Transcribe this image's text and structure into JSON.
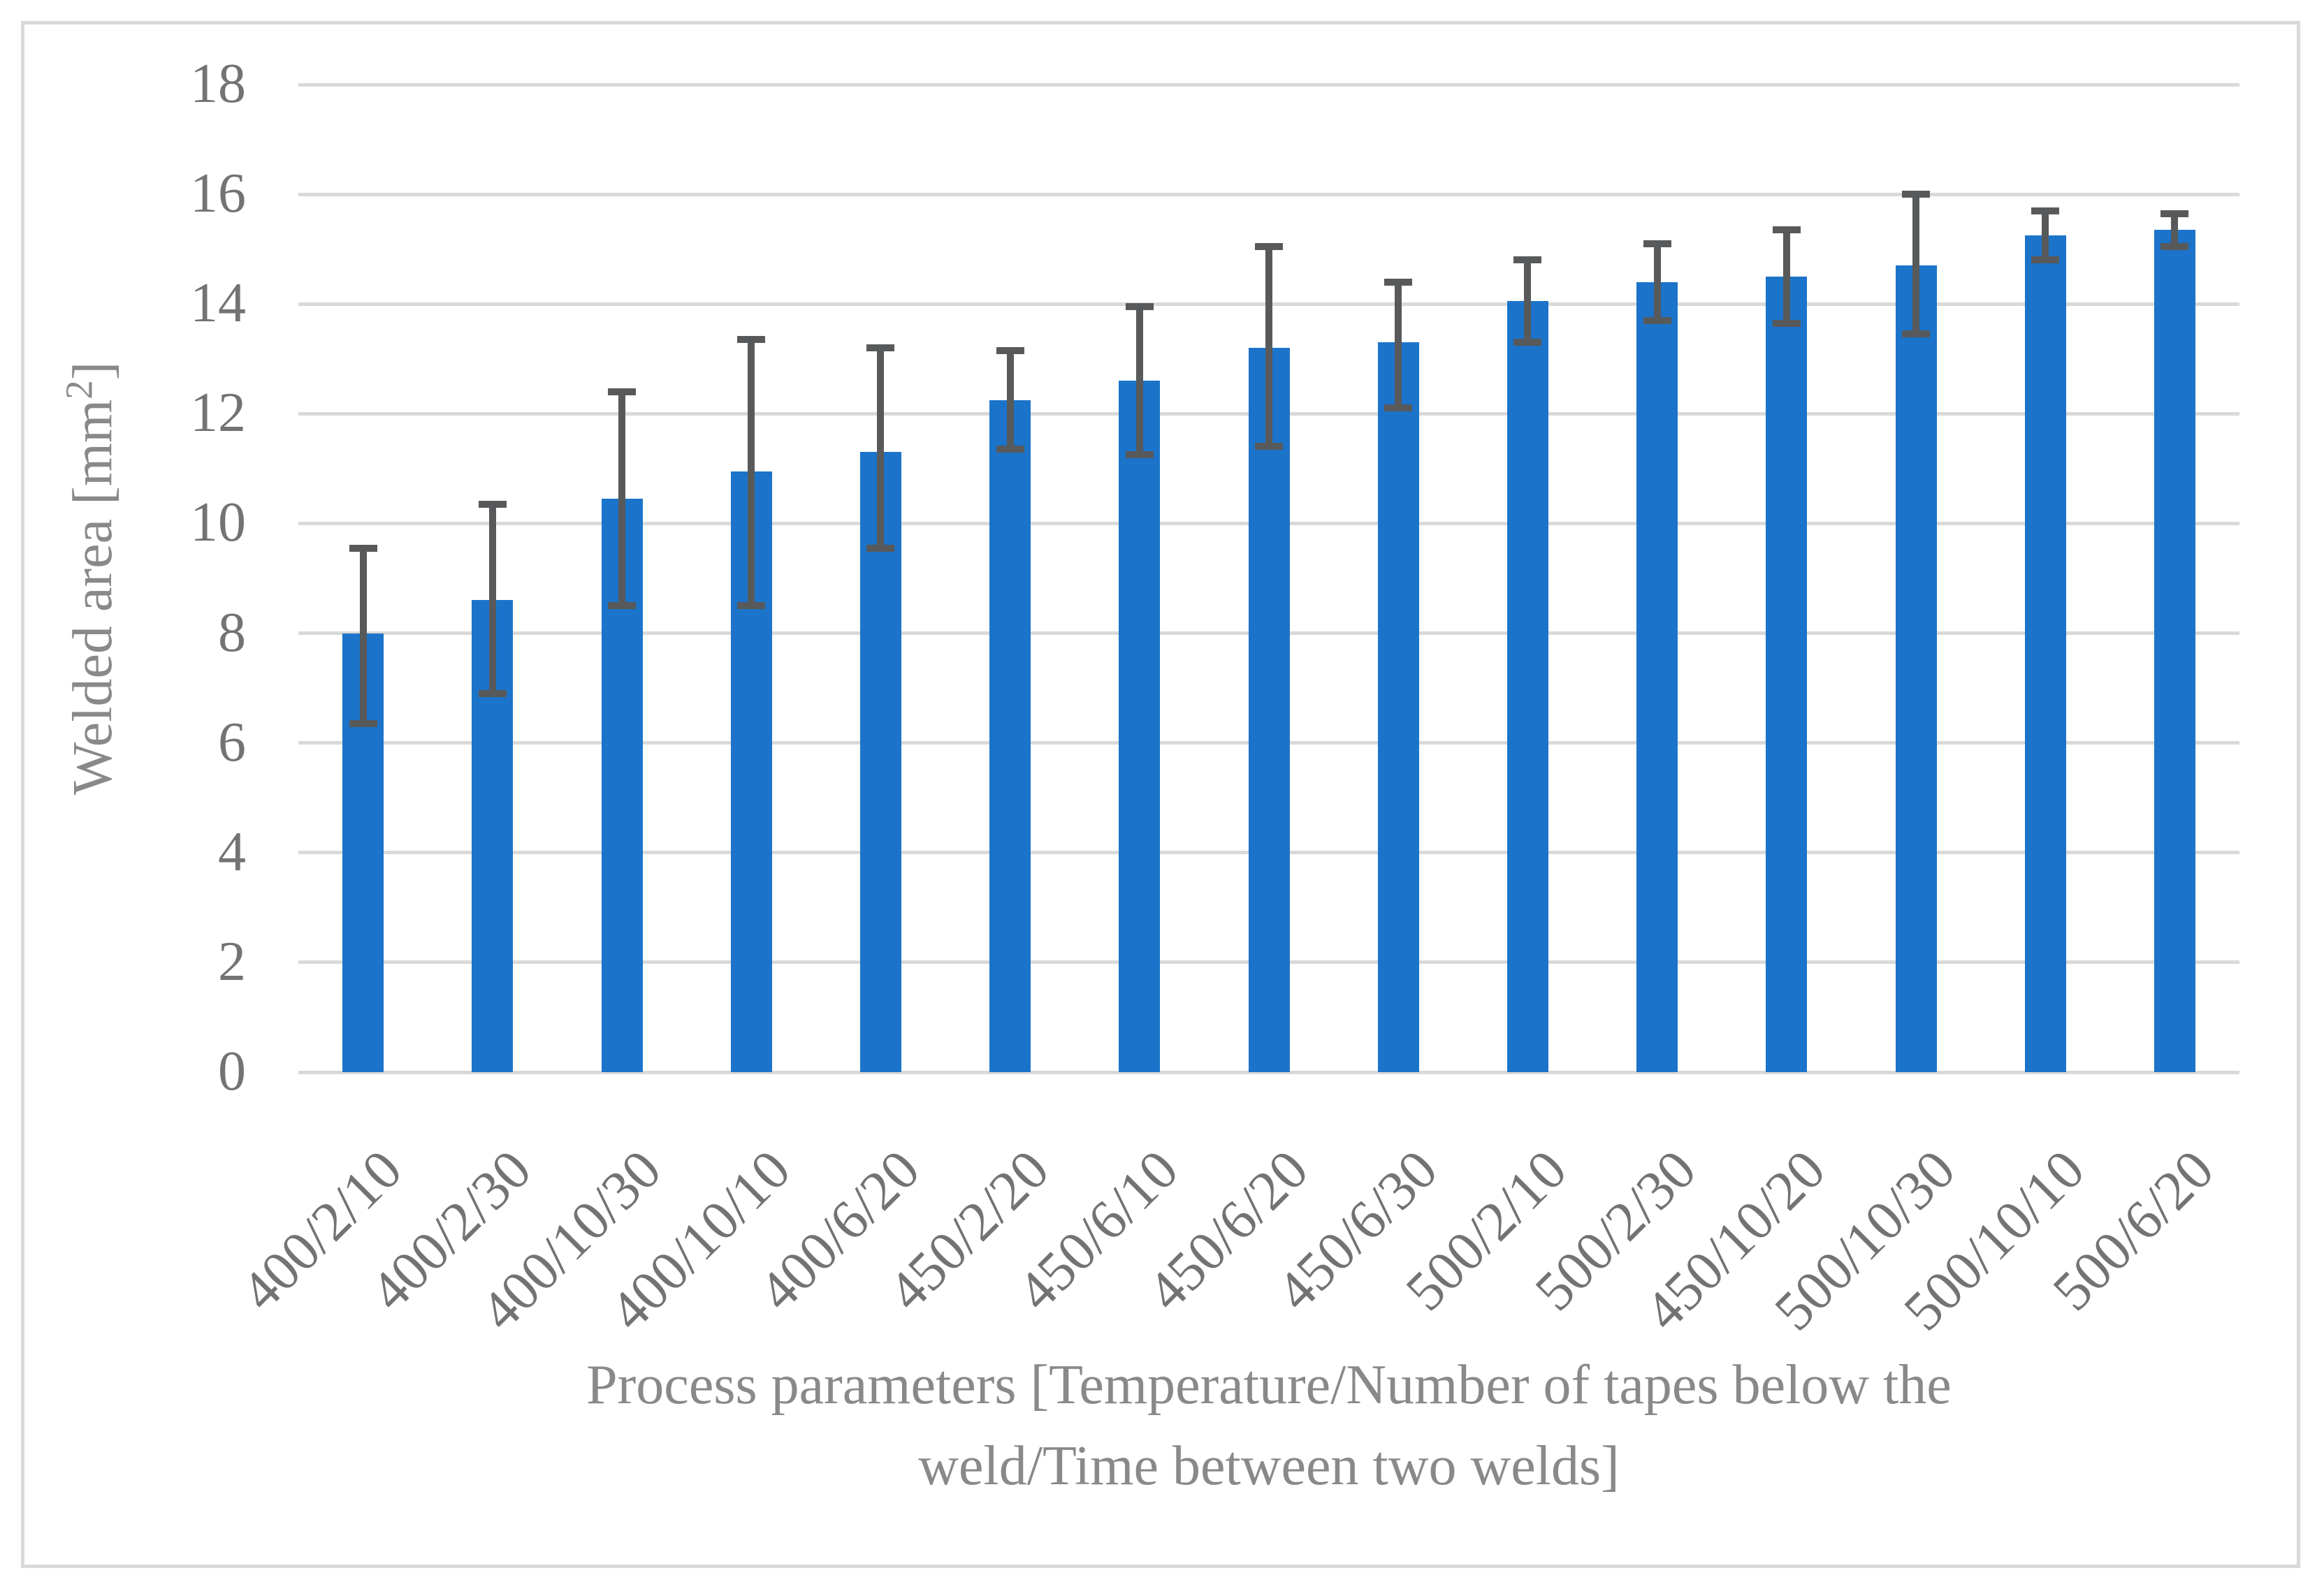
{
  "colors": {
    "bar": "#1b74c9",
    "error_bar": "#58595b",
    "gridline": "#d9d9d9",
    "tick_text": "#737373",
    "title_text": "#898989",
    "background": "#ffffff"
  },
  "chart_data": {
    "type": "bar",
    "title": "",
    "xlabel": "Process parameters [Temperature/Number of tapes below the weld/Time between two welds]",
    "xlabel_lines": [
      "Process parameters [Temperature/Number of tapes below the",
      "weld/Time between two welds]"
    ],
    "ylabel": "Welded area [mm²]",
    "ylabel_parts": {
      "text": "Welded area [mm",
      "sup": "2",
      "close": "]"
    },
    "ylim": [
      0,
      18
    ],
    "yticks": [
      0,
      2,
      4,
      6,
      8,
      10,
      12,
      14,
      16,
      18
    ],
    "grid": "horizontal",
    "legend": "none",
    "categories": [
      "400/2/10",
      "400/2/30",
      "400/10/30",
      "400/10/10",
      "400/6/20",
      "450/2/20",
      "450/6/10",
      "450/6/20",
      "450/6/30",
      "500/2/10",
      "500/2/30",
      "450/10/20",
      "500/10/30",
      "500/10/10",
      "500/6/20"
    ],
    "values": [
      8.0,
      8.6,
      10.45,
      10.95,
      11.3,
      12.25,
      12.6,
      13.2,
      13.3,
      14.05,
      14.4,
      14.5,
      14.7,
      15.25,
      15.35
    ],
    "error_bars": {
      "type": "absolute-whisker-ends",
      "low": [
        6.35,
        6.9,
        8.5,
        8.5,
        9.55,
        11.35,
        11.25,
        11.4,
        12.1,
        13.3,
        13.7,
        13.65,
        13.45,
        14.8,
        15.05
      ],
      "high": [
        9.55,
        10.35,
        12.4,
        13.35,
        13.2,
        13.15,
        13.95,
        15.05,
        14.4,
        14.8,
        15.1,
        15.35,
        16.0,
        15.7,
        15.65
      ]
    }
  }
}
